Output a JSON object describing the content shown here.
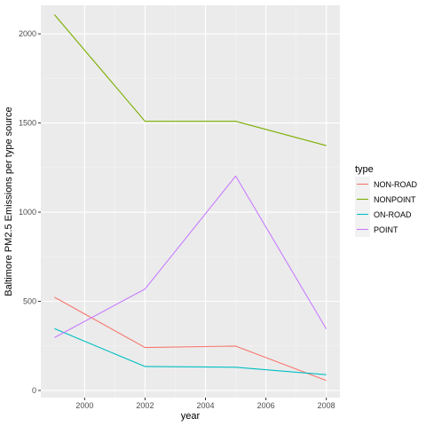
{
  "chart_data": {
    "type": "line",
    "xlabel": "year",
    "ylabel": "Baltimore PM2.5 Emissions per type source",
    "x": [
      1999,
      2002,
      2005,
      2008
    ],
    "xlim": [
      1998.55,
      2008.45
    ],
    "ylim": [
      -40,
      2160
    ],
    "x_ticks": [
      2000,
      2002,
      2004,
      2006,
      2008
    ],
    "y_ticks": [
      0,
      500,
      1000,
      1500,
      2000
    ],
    "grid": true,
    "legend_position": "right",
    "legend_title": "type",
    "series": [
      {
        "name": "NON-ROAD",
        "color": "#F8766D",
        "values": [
          522.9,
          240.8,
          248.9,
          55.8
        ]
      },
      {
        "name": "NONPOINT",
        "color": "#7CAE00",
        "values": [
          2107.6,
          1509.5,
          1509.5,
          1373.2
        ]
      },
      {
        "name": "ON-ROAD",
        "color": "#00BFC4",
        "values": [
          346.8,
          134.3,
          130.4,
          88.3
        ]
      },
      {
        "name": "POINT",
        "color": "#C77CFF",
        "values": [
          296.8,
          569.3,
          1202.5,
          344.98
        ]
      }
    ]
  }
}
